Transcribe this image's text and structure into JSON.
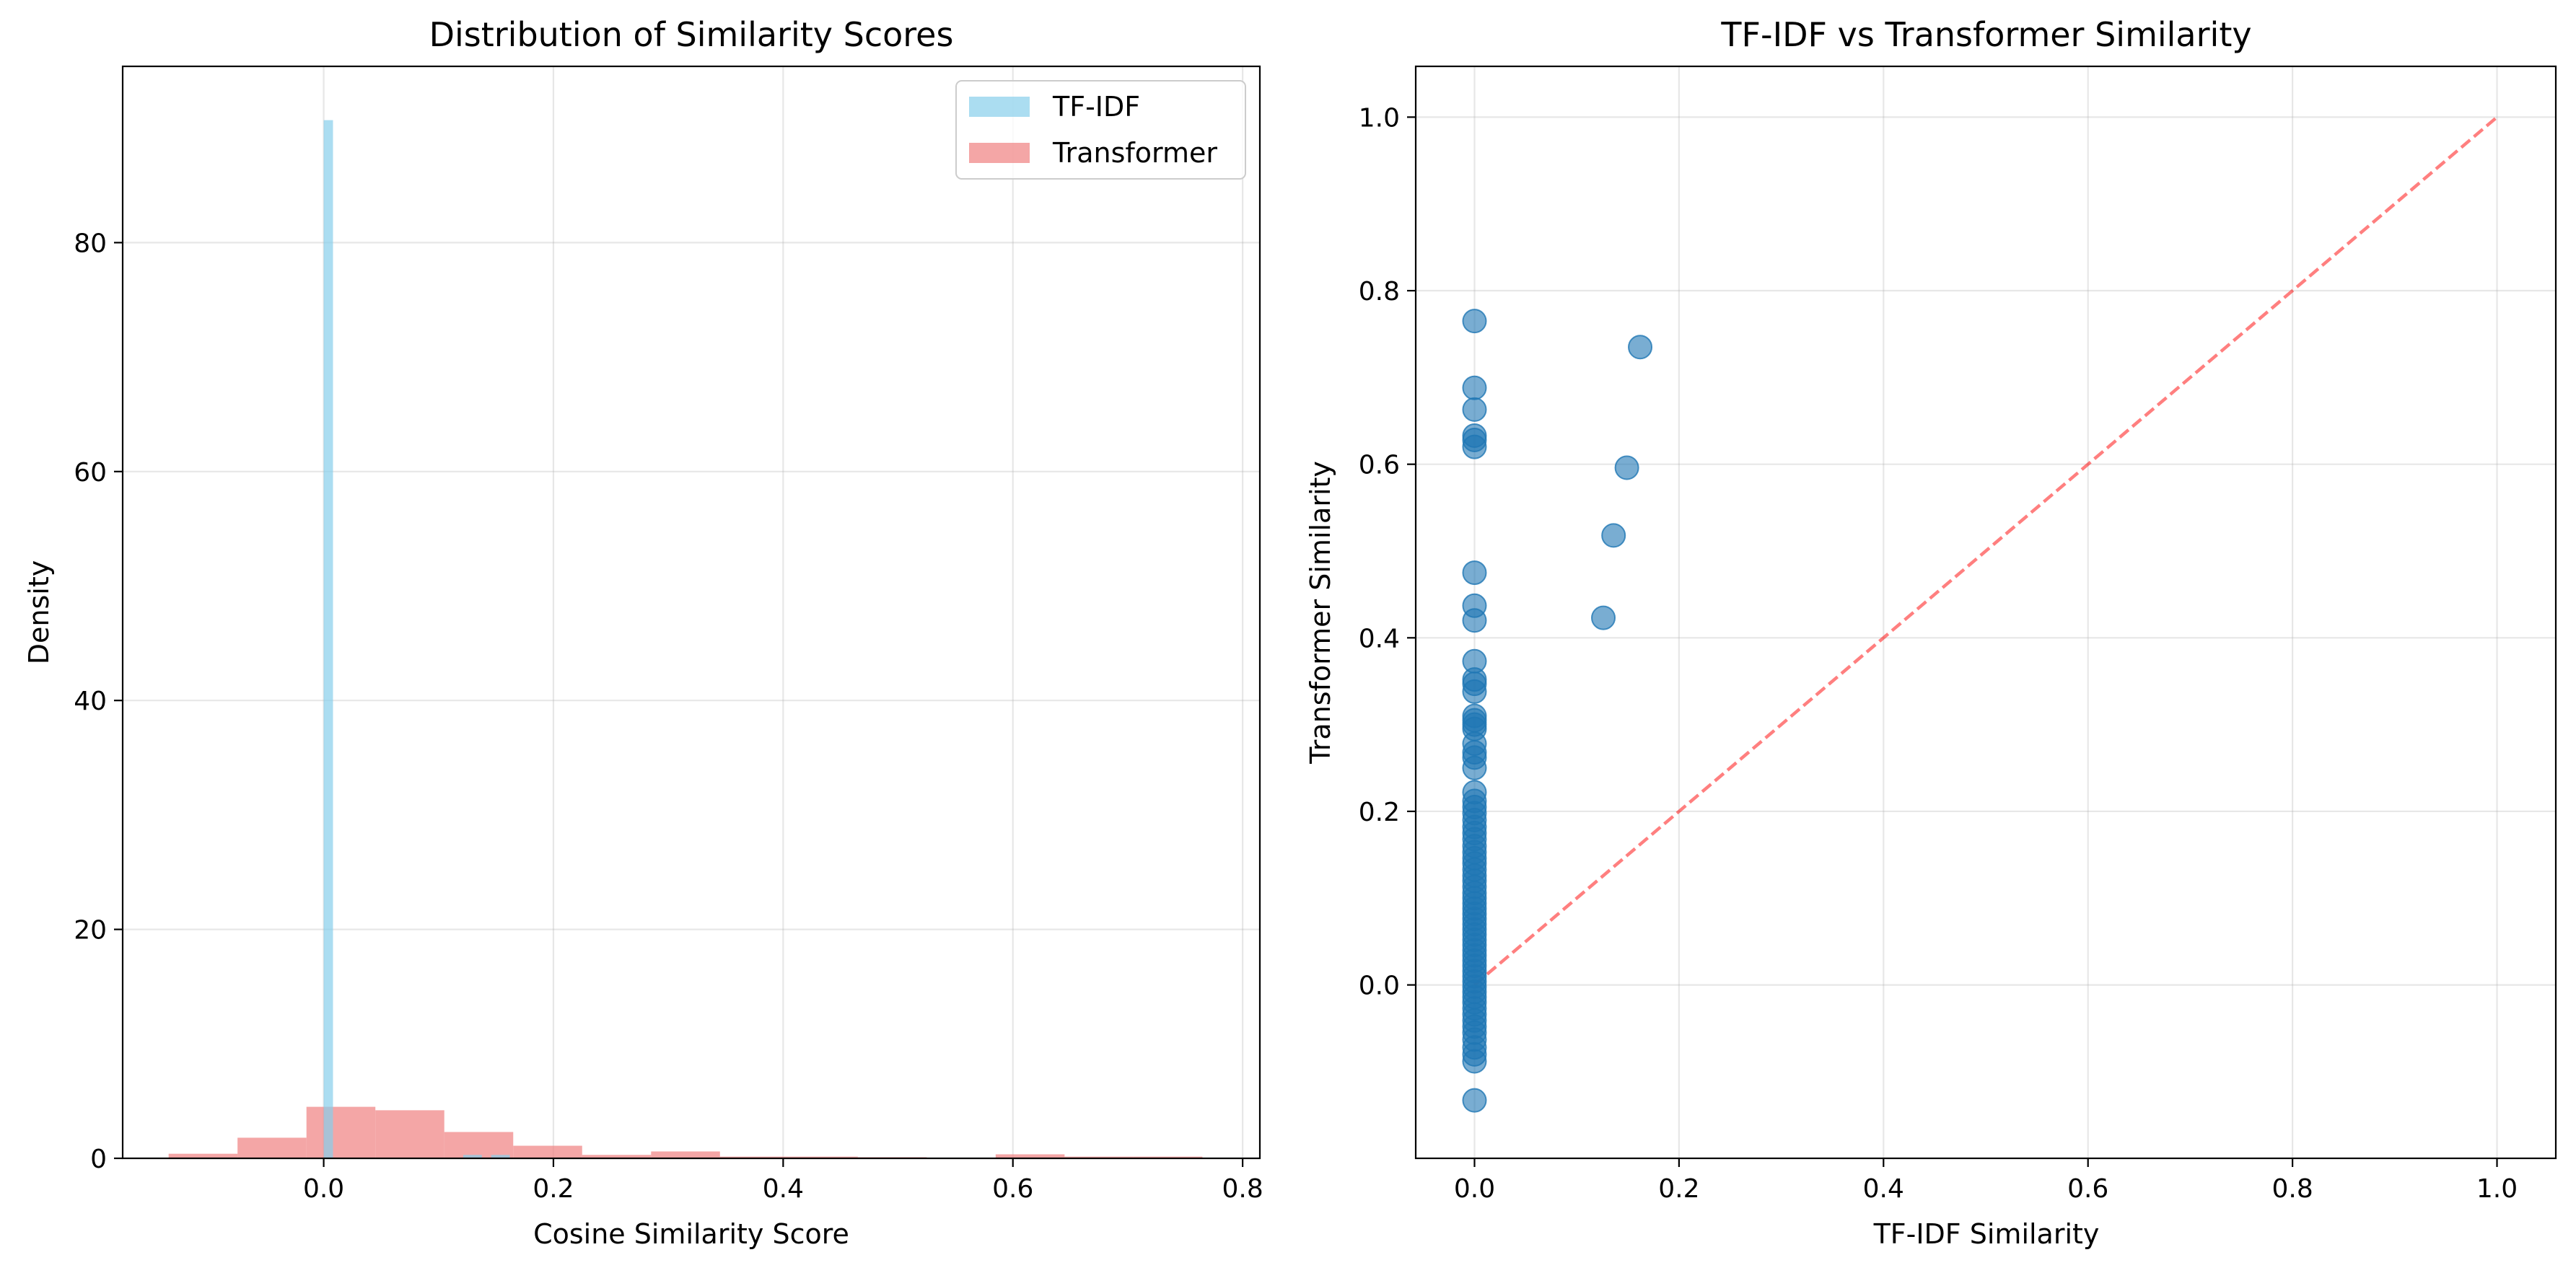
{
  "chart_data": [
    {
      "type": "histogram",
      "title": "Distribution of Similarity Scores",
      "xlabel": "Cosine Similarity Score",
      "ylabel": "Density",
      "xlim": [
        -0.175,
        0.815
      ],
      "ylim": [
        0,
        95.4
      ],
      "xticks": [
        0.0,
        0.2,
        0.4,
        0.6,
        0.8
      ],
      "xtick_labels": [
        "0.0",
        "0.2",
        "0.4",
        "0.6",
        "0.8"
      ],
      "yticks": [
        0,
        20,
        40,
        60,
        80
      ],
      "ytick_labels": [
        "0",
        "20",
        "40",
        "60",
        "80"
      ],
      "grid": true,
      "legend": {
        "placement": "upper right"
      },
      "series": [
        {
          "name": "TF-IDF",
          "color": "#87ceeb",
          "alpha": 0.7,
          "bins": [
            {
              "x0": 0.0,
              "x1": 0.0081,
              "density": 90.7
            },
            {
              "x0": 0.0081,
              "x1": 0.1215,
              "density": 0.0
            },
            {
              "x0": 0.1215,
              "x1": 0.1296,
              "density": 0.3
            },
            {
              "x0": 0.1296,
              "x1": 0.1377,
              "density": 0.3
            },
            {
              "x0": 0.1377,
              "x1": 0.1458,
              "density": 0.0
            },
            {
              "x0": 0.1458,
              "x1": 0.1539,
              "density": 0.3
            },
            {
              "x0": 0.1539,
              "x1": 0.162,
              "density": 0.3
            }
          ]
        },
        {
          "name": "Transformer",
          "color": "#f08080",
          "alpha": 0.7,
          "bins": [
            {
              "x0": -0.135,
              "x1": -0.075,
              "density": 0.4
            },
            {
              "x0": -0.075,
              "x1": -0.015,
              "density": 1.8
            },
            {
              "x0": -0.015,
              "x1": 0.045,
              "density": 4.5
            },
            {
              "x0": 0.045,
              "x1": 0.105,
              "density": 4.2
            },
            {
              "x0": 0.105,
              "x1": 0.165,
              "density": 2.3
            },
            {
              "x0": 0.165,
              "x1": 0.225,
              "density": 1.1
            },
            {
              "x0": 0.225,
              "x1": 0.285,
              "density": 0.3
            },
            {
              "x0": 0.285,
              "x1": 0.345,
              "density": 0.6
            },
            {
              "x0": 0.345,
              "x1": 0.405,
              "density": 0.15
            },
            {
              "x0": 0.405,
              "x1": 0.465,
              "density": 0.15
            },
            {
              "x0": 0.465,
              "x1": 0.525,
              "density": 0.1
            },
            {
              "x0": 0.525,
              "x1": 0.585,
              "density": 0.0
            },
            {
              "x0": 0.585,
              "x1": 0.645,
              "density": 0.35
            },
            {
              "x0": 0.645,
              "x1": 0.705,
              "density": 0.15
            },
            {
              "x0": 0.705,
              "x1": 0.765,
              "density": 0.15
            }
          ]
        }
      ]
    },
    {
      "type": "scatter",
      "title": "TF-IDF vs Transformer Similarity",
      "xlabel": "TF-IDF Similarity",
      "ylabel": "Transformer Similarity",
      "xlim": [
        -0.0575,
        1.0575
      ],
      "ylim": [
        -0.1998,
        1.0585
      ],
      "xticks": [
        0.0,
        0.2,
        0.4,
        0.6,
        0.8,
        1.0
      ],
      "xtick_labels": [
        "0.0",
        "0.2",
        "0.4",
        "0.6",
        "0.8",
        "1.0"
      ],
      "yticks": [
        0.0,
        0.2,
        0.4,
        0.6,
        0.8,
        1.0
      ],
      "ytick_labels": [
        "0.0",
        "0.2",
        "0.4",
        "0.6",
        "0.8",
        "1.0"
      ],
      "grid": true,
      "marker_color": "#1f77b4",
      "marker_alpha": 0.6,
      "reference_line": {
        "x": [
          0,
          1
        ],
        "y": [
          0,
          1
        ],
        "style": "dashed",
        "color": "#ff0000",
        "alpha": 0.5
      },
      "points": [
        {
          "x": 0,
          "y": 0.765
        },
        {
          "x": 0,
          "y": 0.688
        },
        {
          "x": 0,
          "y": 0.663
        },
        {
          "x": 0,
          "y": 0.633
        },
        {
          "x": 0,
          "y": 0.628
        },
        {
          "x": 0,
          "y": 0.62
        },
        {
          "x": 0,
          "y": 0.475
        },
        {
          "x": 0,
          "y": 0.437
        },
        {
          "x": 0,
          "y": 0.42
        },
        {
          "x": 0,
          "y": 0.373
        },
        {
          "x": 0,
          "y": 0.352
        },
        {
          "x": 0,
          "y": 0.347
        },
        {
          "x": 0,
          "y": 0.338
        },
        {
          "x": 0,
          "y": 0.31
        },
        {
          "x": 0,
          "y": 0.305
        },
        {
          "x": 0,
          "y": 0.3
        },
        {
          "x": 0,
          "y": 0.295
        },
        {
          "x": 0,
          "y": 0.278
        },
        {
          "x": 0,
          "y": 0.268
        },
        {
          "x": 0,
          "y": 0.262
        },
        {
          "x": 0,
          "y": 0.25
        },
        {
          "x": 0,
          "y": 0.222
        },
        {
          "x": 0,
          "y": 0.212
        },
        {
          "x": 0,
          "y": 0.205
        },
        {
          "x": 0,
          "y": 0.198
        },
        {
          "x": 0,
          "y": 0.19
        },
        {
          "x": 0,
          "y": 0.182
        },
        {
          "x": 0,
          "y": 0.175
        },
        {
          "x": 0,
          "y": 0.168
        },
        {
          "x": 0,
          "y": 0.16
        },
        {
          "x": 0,
          "y": 0.153
        },
        {
          "x": 0,
          "y": 0.146
        },
        {
          "x": 0,
          "y": 0.14
        },
        {
          "x": 0,
          "y": 0.133
        },
        {
          "x": 0,
          "y": 0.126
        },
        {
          "x": 0,
          "y": 0.12
        },
        {
          "x": 0,
          "y": 0.113
        },
        {
          "x": 0,
          "y": 0.106
        },
        {
          "x": 0,
          "y": 0.1
        },
        {
          "x": 0,
          "y": 0.094
        },
        {
          "x": 0,
          "y": 0.088
        },
        {
          "x": 0,
          "y": 0.082
        },
        {
          "x": 0,
          "y": 0.076
        },
        {
          "x": 0,
          "y": 0.07
        },
        {
          "x": 0,
          "y": 0.064
        },
        {
          "x": 0,
          "y": 0.058
        },
        {
          "x": 0,
          "y": 0.052
        },
        {
          "x": 0,
          "y": 0.046
        },
        {
          "x": 0,
          "y": 0.04
        },
        {
          "x": 0,
          "y": 0.034
        },
        {
          "x": 0,
          "y": 0.028
        },
        {
          "x": 0,
          "y": 0.022
        },
        {
          "x": 0,
          "y": 0.016
        },
        {
          "x": 0,
          "y": 0.01
        },
        {
          "x": 0,
          "y": 0.004
        },
        {
          "x": 0,
          "y": -0.002
        },
        {
          "x": 0,
          "y": -0.008
        },
        {
          "x": 0,
          "y": -0.014
        },
        {
          "x": 0,
          "y": -0.02
        },
        {
          "x": 0,
          "y": -0.027
        },
        {
          "x": 0,
          "y": -0.034
        },
        {
          "x": 0,
          "y": -0.041
        },
        {
          "x": 0,
          "y": -0.048
        },
        {
          "x": 0,
          "y": -0.055
        },
        {
          "x": 0,
          "y": -0.063
        },
        {
          "x": 0,
          "y": -0.072
        },
        {
          "x": 0,
          "y": -0.08
        },
        {
          "x": 0,
          "y": -0.088
        },
        {
          "x": 0,
          "y": -0.133
        },
        {
          "x": 0.162,
          "y": 0.735
        },
        {
          "x": 0.149,
          "y": 0.596
        },
        {
          "x": 0.136,
          "y": 0.518
        },
        {
          "x": 0.126,
          "y": 0.423
        }
      ]
    }
  ]
}
